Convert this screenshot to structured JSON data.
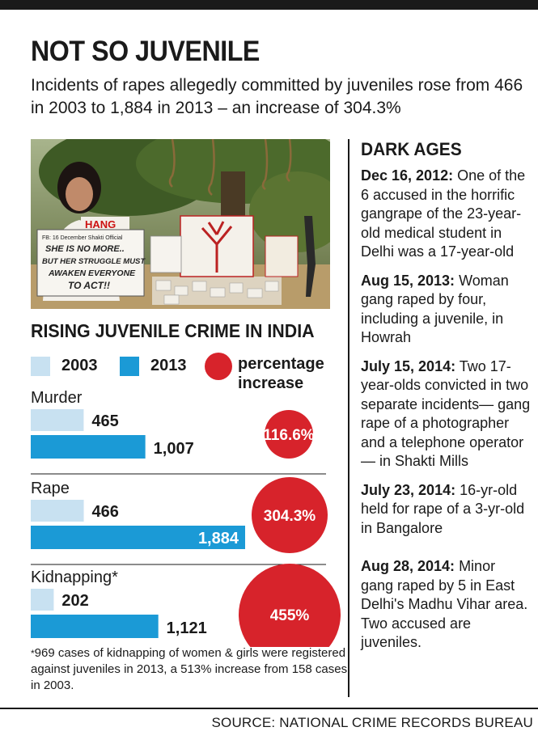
{
  "headline": "NOT SO JUVENILE",
  "subhead": "Incidents of rapes allegedly committed by juveniles rose from 466 in 2003 to 1,884 in 2013 – an increase of 304.3%",
  "photo": {
    "sign1_line1": "FB: 16 December Shakti Official",
    "sign1_line2": "SHE IS NO MORE..",
    "sign1_line3": "BUT HER STRUGGLE MUST",
    "sign1_line4": "AWAKEN EVERYONE",
    "sign1_line5": "TO ACT!!",
    "hang": "HANG"
  },
  "colors": {
    "y2003": "#c8e1f1",
    "y2013": "#1b9ad6",
    "increase": "#d7232b"
  },
  "chart_data": {
    "type": "bar",
    "title": "RISING JUVENILE CRIME IN INDIA",
    "legend": {
      "y2003": "2003",
      "y2013": "2013",
      "increase": "percentage increase"
    },
    "legend_placement": "top",
    "categories": [
      "Murder",
      "Rape",
      "Kidnapping"
    ],
    "category_suffix": [
      "",
      "",
      "*"
    ],
    "series": [
      {
        "name": "2003",
        "values": [
          465,
          466,
          202
        ],
        "labels": [
          "465",
          "466",
          "202"
        ]
      },
      {
        "name": "2013",
        "values": [
          1007,
          1884,
          1121
        ],
        "labels": [
          "1,007",
          "1,884",
          "1,121"
        ]
      }
    ],
    "percentage_increase": [
      116.6,
      304.3,
      455
    ],
    "percentage_labels": [
      "116.6%",
      "304.3%",
      "455%"
    ],
    "xlim": [
      0,
      2000
    ]
  },
  "footnote": "969 cases of kidnapping of women & girls were registered against juveniles in 2013, a 513% increase from 158 cases in 2003.",
  "footnote_mark": "*",
  "dark_ages": {
    "title": "DARK AGES",
    "events": [
      {
        "date": "Dec 16, 2012:",
        "text": " One of the 6 accused in the horrific gangrape of the 23-year-old medical student in Delhi was a 17-year-old"
      },
      {
        "date": "Aug 15, 2013:",
        "text": " Woman gang raped by four, including a juvenile, in Howrah"
      },
      {
        "date": "July 15, 2014:",
        "text": " Two 17-year-olds convicted in two separate incidents— gang rape of a photographer and a telephone operator — in Shakti Mills"
      },
      {
        "date": "July 23, 2014:",
        "text": " 16-yr-old held for rape of a 3-yr-old in Bangalore"
      },
      {
        "date": "Aug 28, 2014:",
        "text": " Minor gang raped by 5 in East Delhi's Madhu Vihar area. Two accused are juveniles."
      }
    ]
  },
  "source": "SOURCE: NATIONAL CRIME RECORDS BUREAU"
}
